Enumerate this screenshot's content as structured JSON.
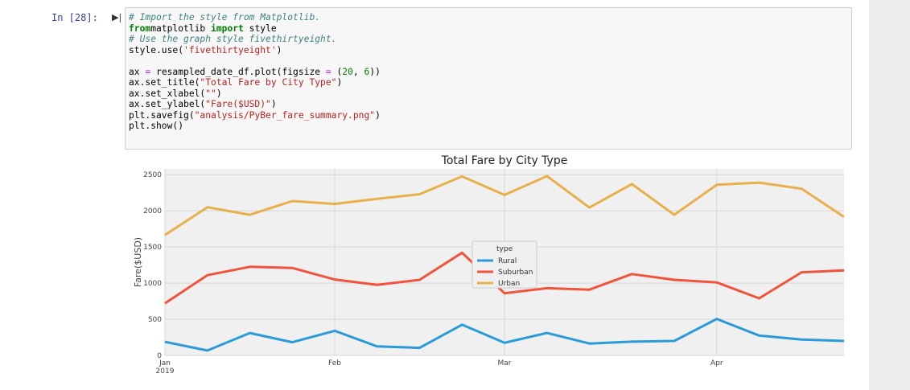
{
  "cell": {
    "prompt": "In [28]:",
    "code_lines": [
      [
        [
          "cm",
          "# Import the style from Matplotlib."
        ]
      ],
      [
        [
          "kw",
          "from"
        ],
        [
          "",
          "matplotlib "
        ],
        [
          "kw",
          "import"
        ],
        [
          "",
          " style"
        ]
      ],
      [
        [
          "cm",
          "# Use the graph style fivethirtyeight."
        ]
      ],
      [
        [
          "",
          "style.use("
        ],
        [
          "st",
          "'fivethirtyeight'"
        ],
        [
          "",
          ")"
        ]
      ],
      [
        [
          "",
          ""
        ]
      ],
      [
        [
          "",
          "ax "
        ],
        [
          "op",
          "="
        ],
        [
          "",
          ""
        ],
        [
          "",
          " resampled_date_df.plot(figsize "
        ],
        [
          "op",
          "="
        ],
        [
          "",
          " ("
        ],
        [
          "nu",
          "20"
        ],
        [
          "",
          ", "
        ],
        [
          "nu",
          "6"
        ],
        [
          "",
          "))"
        ]
      ],
      [
        [
          "",
          "ax.set_title("
        ],
        [
          "st",
          "\"Total Fare by City Type\""
        ],
        [
          "",
          ")"
        ]
      ],
      [
        [
          "",
          "ax.set_xlabel("
        ],
        [
          "st",
          "\"\""
        ],
        [
          "",
          ")"
        ]
      ],
      [
        [
          "",
          "ax.set_ylabel("
        ],
        [
          "st",
          "\"Fare($USD)\""
        ],
        [
          "",
          ")"
        ]
      ],
      [
        [
          "",
          "plt.savefig("
        ],
        [
          "st",
          "\"analysis/PyBer_fare_summary.png\""
        ],
        [
          "",
          ")"
        ]
      ],
      [
        [
          "",
          "plt.show()"
        ]
      ]
    ]
  },
  "colors": {
    "Rural": "#2a9bd8",
    "Suburban": "#f0543c",
    "Urban": "#e8b04a",
    "plot_bg": "#f0f0f0",
    "grid": "#d6d6d6"
  },
  "chart_data": {
    "type": "line",
    "title": "Total Fare by City Type",
    "xlabel": "",
    "ylabel": "Fare($USD)",
    "x": [
      "2019-01-06",
      "2019-01-13",
      "2019-01-20",
      "2019-01-27",
      "2019-02-03",
      "2019-02-10",
      "2019-02-17",
      "2019-02-24",
      "2019-03-03",
      "2019-03-10",
      "2019-03-17",
      "2019-03-24",
      "2019-03-31",
      "2019-04-07",
      "2019-04-14",
      "2019-04-21",
      "2019-04-28"
    ],
    "xlim": [
      "2019-01-06",
      "2019-04-28"
    ],
    "ylim": [
      0,
      2580
    ],
    "y_ticks": [
      0,
      500,
      1000,
      1500,
      2000,
      2500
    ],
    "x_ticks": [
      {
        "date": "2019-01-06",
        "label": "Jan",
        "sublabel": "2019"
      },
      {
        "date": "2019-02-03",
        "label": "Feb",
        "sublabel": ""
      },
      {
        "date": "2019-03-03",
        "label": "Mar",
        "sublabel": ""
      },
      {
        "date": "2019-04-07",
        "label": "Apr",
        "sublabel": ""
      }
    ],
    "legend": {
      "title": "type",
      "placement": "center"
    },
    "series": [
      {
        "name": "Rural",
        "values": [
          188,
          68,
          310,
          182,
          340,
          125,
          105,
          425,
          175,
          310,
          165,
          190,
          200,
          505,
          275,
          220,
          200
        ]
      },
      {
        "name": "Suburban",
        "values": [
          720,
          1110,
          1225,
          1210,
          1050,
          975,
          1045,
          1420,
          860,
          930,
          910,
          1125,
          1045,
          1010,
          790,
          1150,
          1175
        ]
      },
      {
        "name": "Urban",
        "values": [
          1665,
          2050,
          1945,
          2135,
          2095,
          2165,
          2230,
          2475,
          2220,
          2480,
          2045,
          2370,
          1945,
          2360,
          2390,
          2305,
          1915
        ]
      }
    ],
    "grid": true
  }
}
